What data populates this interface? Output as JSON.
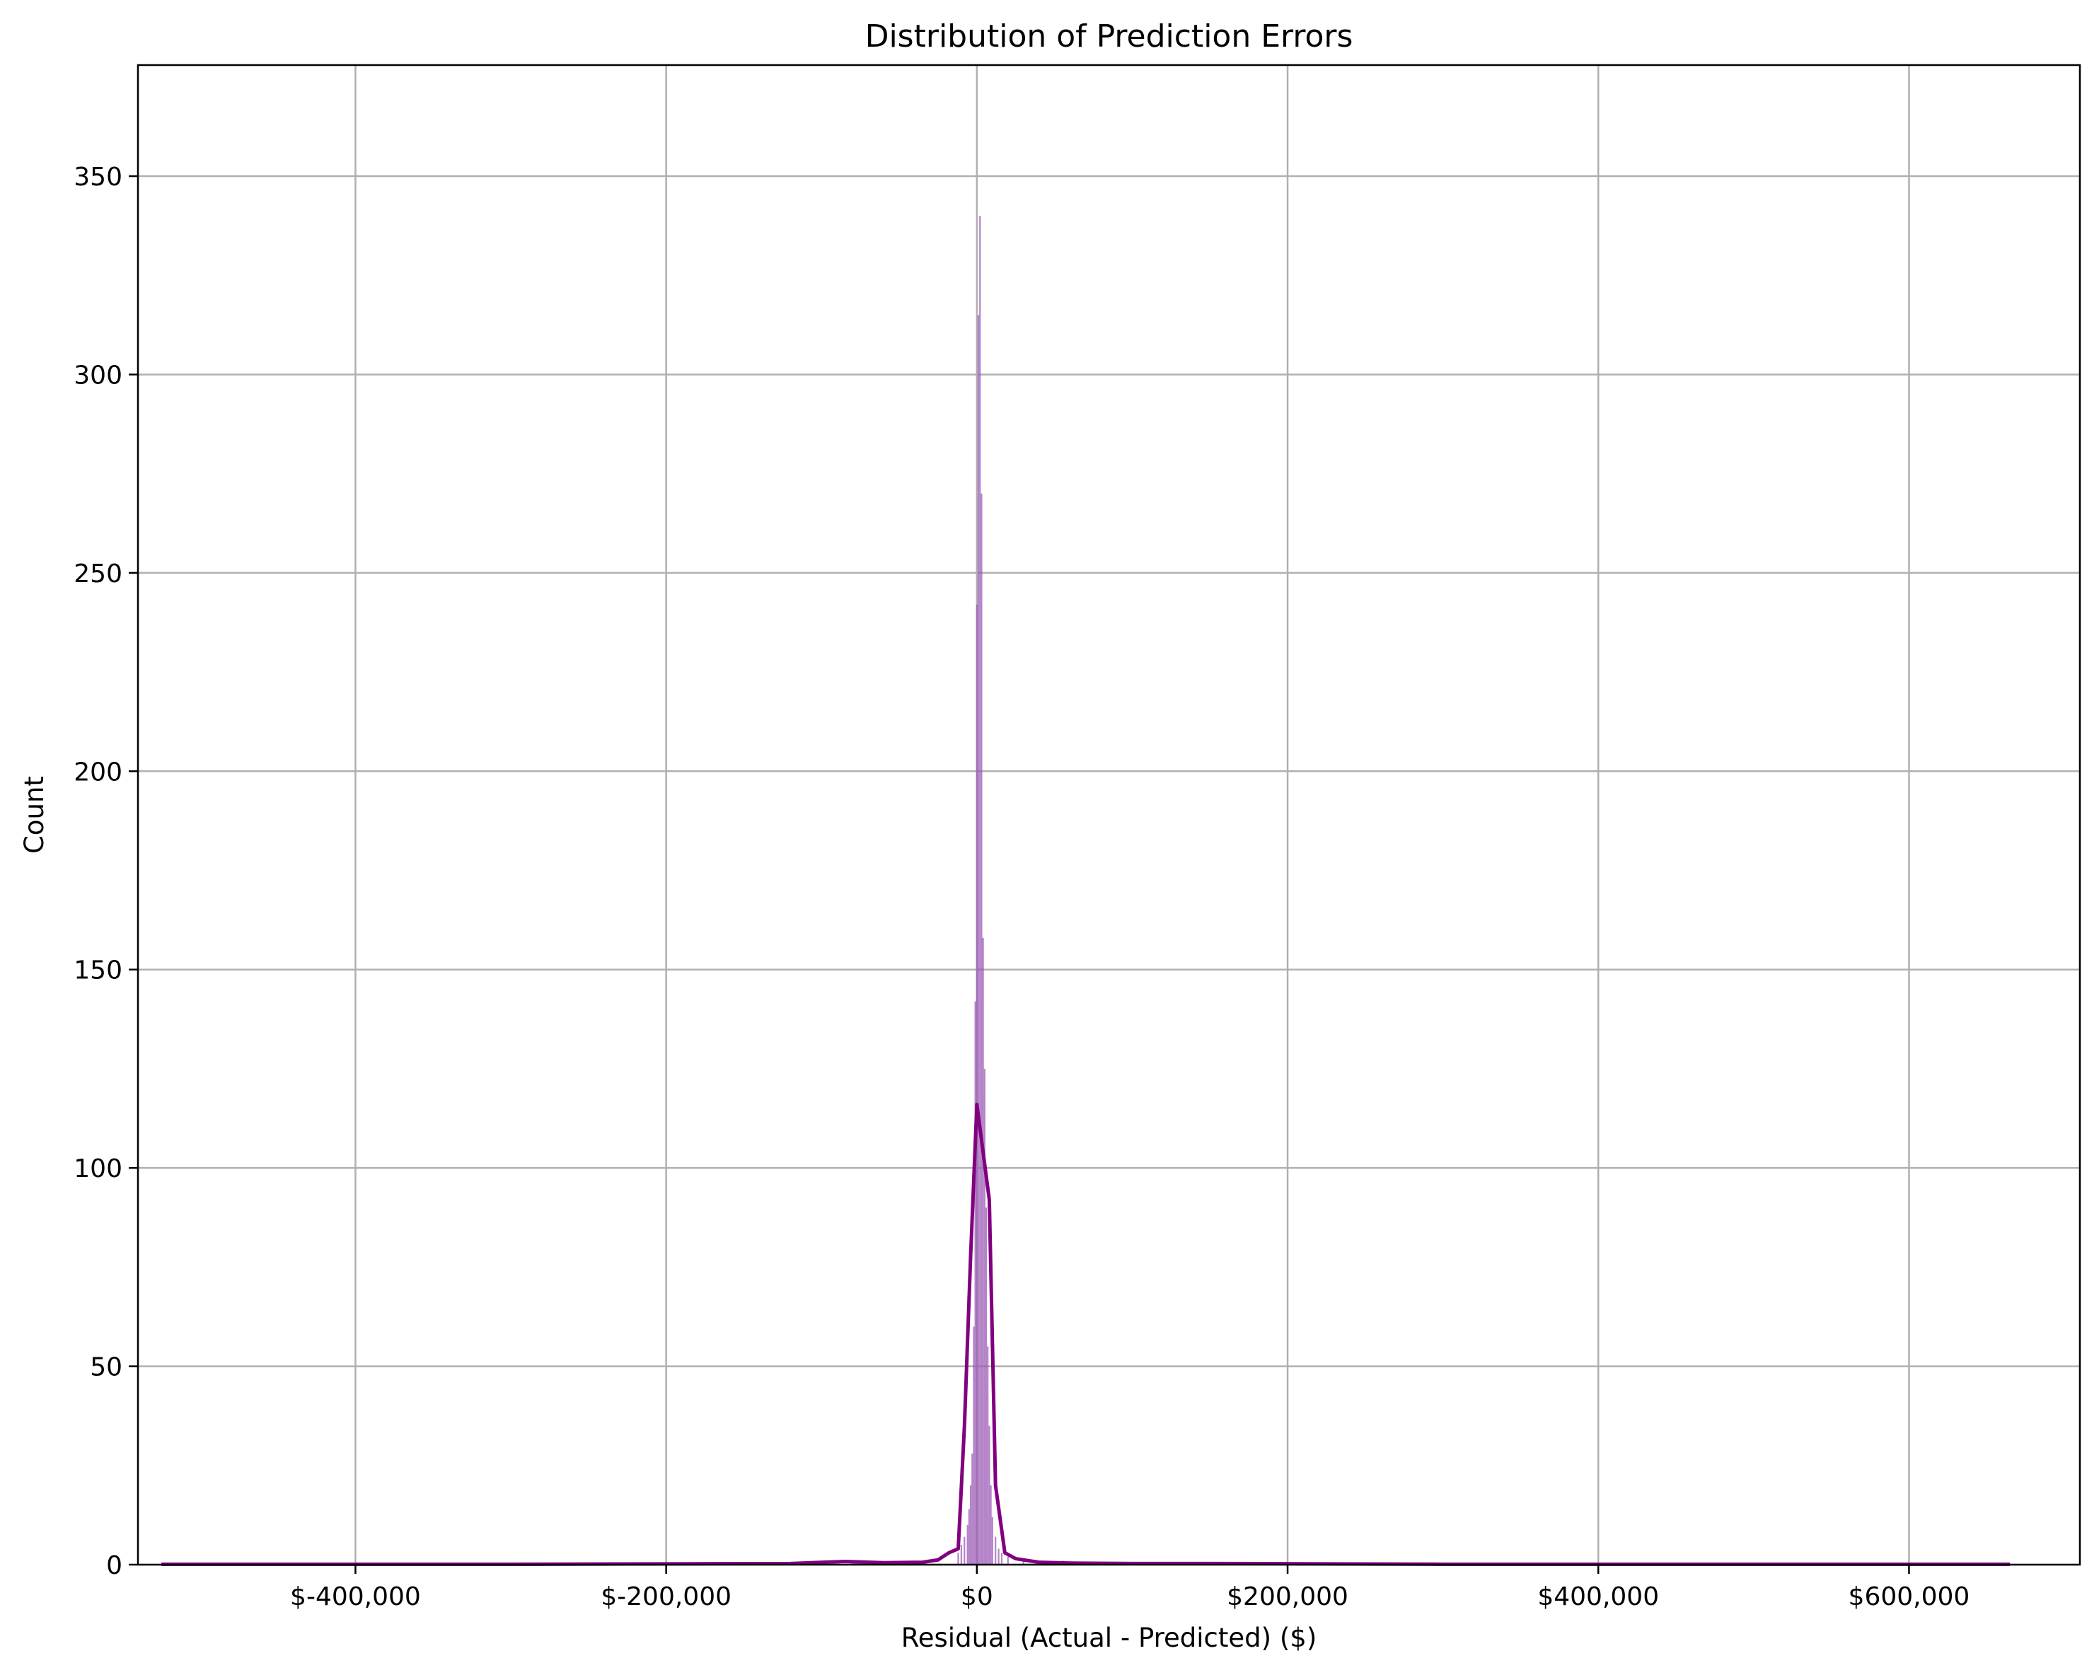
{
  "chart_data": {
    "type": "histogram",
    "title": "Distribution of Prediction Errors",
    "xlabel": "Residual (Actual - Predicted) ($)",
    "ylabel": "Count",
    "xlim": [
      -540000,
      710000
    ],
    "ylim": [
      0,
      378
    ],
    "grid": true,
    "x_ticks": [
      {
        "value": -400000,
        "label": "$-400,000"
      },
      {
        "value": -200000,
        "label": "$-200,000"
      },
      {
        "value": 0,
        "label": "$0"
      },
      {
        "value": 200000,
        "label": "$200,000"
      },
      {
        "value": 400000,
        "label": "$400,000"
      },
      {
        "value": 600000,
        "label": "$600,000"
      }
    ],
    "y_ticks": [
      {
        "value": 0,
        "label": "0"
      },
      {
        "value": 50,
        "label": "50"
      },
      {
        "value": 100,
        "label": "100"
      },
      {
        "value": 150,
        "label": "150"
      },
      {
        "value": 200,
        "label": "200"
      },
      {
        "value": 250,
        "label": "250"
      },
      {
        "value": 300,
        "label": "300"
      },
      {
        "value": 350,
        "label": "350"
      }
    ],
    "histogram": {
      "color": "#9b59b6",
      "bins": [
        {
          "x": -12000,
          "count": 3
        },
        {
          "x": -10000,
          "count": 5
        },
        {
          "x": -8000,
          "count": 7
        },
        {
          "x": -6000,
          "count": 10
        },
        {
          "x": -5000,
          "count": 14
        },
        {
          "x": -4000,
          "count": 20
        },
        {
          "x": -3000,
          "count": 28
        },
        {
          "x": -2000,
          "count": 60
        },
        {
          "x": -1000,
          "count": 142
        },
        {
          "x": 0,
          "count": 242
        },
        {
          "x": 1000,
          "count": 315
        },
        {
          "x": 2000,
          "count": 340
        },
        {
          "x": 3000,
          "count": 270
        },
        {
          "x": 4000,
          "count": 158
        },
        {
          "x": 5000,
          "count": 125
        },
        {
          "x": 6000,
          "count": 90
        },
        {
          "x": 7000,
          "count": 55
        },
        {
          "x": 8000,
          "count": 35
        },
        {
          "x": 9000,
          "count": 20
        },
        {
          "x": 10000,
          "count": 12
        },
        {
          "x": 12000,
          "count": 7
        },
        {
          "x": 14000,
          "count": 4
        },
        {
          "x": 16000,
          "count": 3
        },
        {
          "x": 20000,
          "count": 2
        },
        {
          "x": 30000,
          "count": 1
        },
        {
          "x": 55000,
          "count": 1
        },
        {
          "x": -35000,
          "count": 1
        },
        {
          "x": -80000,
          "count": 1
        }
      ]
    },
    "kde": {
      "color": "#800080",
      "x": [
        -525000,
        -300000,
        -200000,
        -120000,
        -85000,
        -60000,
        -35000,
        -25000,
        -18000,
        -12000,
        -8000,
        -4000,
        0,
        4000,
        8000,
        12000,
        18000,
        25000,
        40000,
        60000,
        100000,
        150000,
        300000,
        500000,
        665000
      ],
      "y": [
        0.1,
        0.1,
        0.2,
        0.3,
        0.8,
        0.5,
        0.6,
        1.2,
        3,
        4,
        35,
        78,
        116,
        104,
        92,
        20,
        3,
        1.5,
        0.6,
        0.4,
        0.3,
        0.3,
        0.1,
        0.1,
        0.1
      ]
    }
  }
}
